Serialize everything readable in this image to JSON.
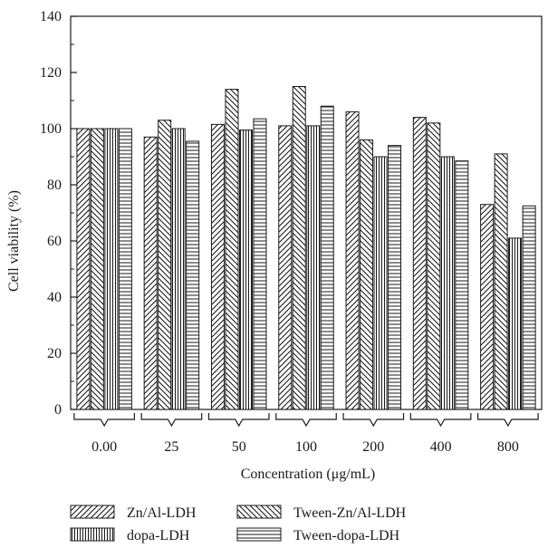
{
  "chart_data": {
    "type": "bar",
    "title": "",
    "xlabel": "Concentration (μg/mL)",
    "ylabel": "Cell viability (%)",
    "categories": [
      "0.00",
      "25",
      "50",
      "100",
      "200",
      "400",
      "800"
    ],
    "ylim": [
      0,
      140
    ],
    "yticks": [
      0,
      20,
      40,
      60,
      80,
      100,
      120,
      140
    ],
    "grid": false,
    "legend_position": "bottom",
    "series": [
      {
        "name": "Zn/Al-LDH",
        "pattern": "diagonal-forward",
        "values": [
          100,
          97,
          101.5,
          101,
          106,
          104,
          73
        ]
      },
      {
        "name": "Tween-Zn/Al-LDH",
        "pattern": "diagonal-backward",
        "values": [
          100,
          103,
          114,
          115,
          96,
          102,
          91
        ]
      },
      {
        "name": "dopa-LDH",
        "pattern": "vertical",
        "values": [
          100,
          100,
          99.5,
          101,
          90,
          90,
          61
        ]
      },
      {
        "name": "Tween-dopa-LDH",
        "pattern": "horizontal",
        "values": [
          100,
          95.5,
          103.5,
          108,
          94,
          88.5,
          72.5
        ]
      }
    ]
  }
}
